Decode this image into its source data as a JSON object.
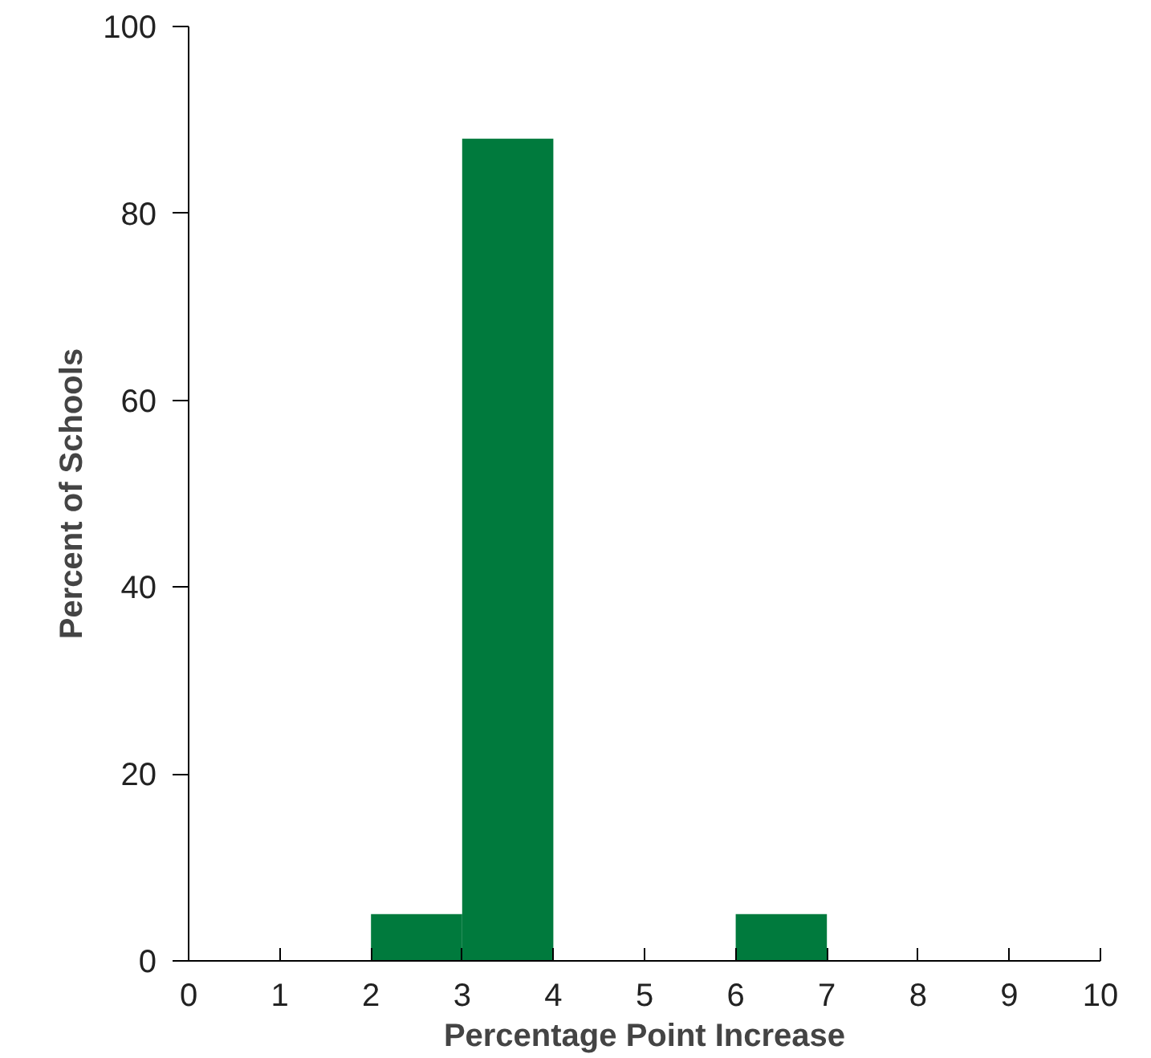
{
  "chart_data": {
    "type": "histogram",
    "xlabel": "Percentage Point Increase",
    "ylabel": "Percent of Schools",
    "bins": [
      0,
      1,
      2,
      3,
      4,
      5,
      6,
      7,
      8,
      9,
      10
    ],
    "values": [
      0,
      0,
      5,
      88,
      0,
      0,
      5,
      0,
      0,
      0
    ],
    "color": "#007a3d",
    "xlim": [
      0,
      10
    ],
    "xticks": [
      0,
      1,
      2,
      3,
      4,
      5,
      6,
      7,
      8,
      9,
      10
    ],
    "ylim": [
      0,
      100
    ],
    "yticks": [
      0,
      20,
      40,
      60,
      80,
      100
    ],
    "grid": false
  }
}
